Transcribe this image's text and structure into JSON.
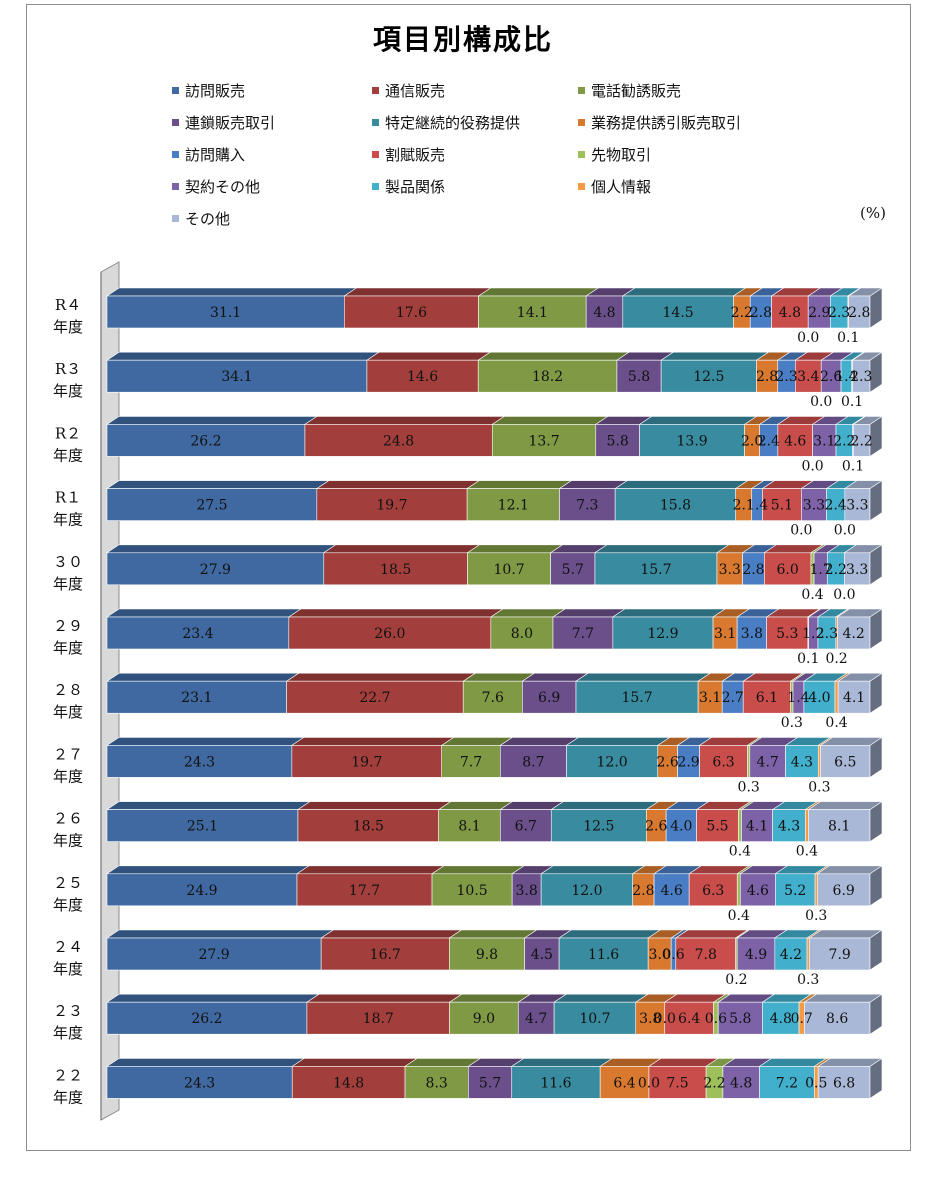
{
  "chart_data": {
    "type": "bar",
    "stacked": true,
    "orientation": "horizontal",
    "title": "項目別構成比",
    "unit": "(%)",
    "legend_position": "top",
    "categories": [
      [
        "R４",
        "年度"
      ],
      [
        "R３",
        "年度"
      ],
      [
        "R２",
        "年度"
      ],
      [
        "R１",
        "年度"
      ],
      [
        "３０",
        "年度"
      ],
      [
        "２９",
        "年度"
      ],
      [
        "２８",
        "年度"
      ],
      [
        "２７",
        "年度"
      ],
      [
        "２６",
        "年度"
      ],
      [
        "２５",
        "年度"
      ],
      [
        "２４",
        "年度"
      ],
      [
        "２３",
        "年度"
      ],
      [
        "２２",
        "年度"
      ]
    ],
    "series": [
      {
        "name": "訪問販売",
        "color": "#3f69a0",
        "values": [
          31.1,
          34.1,
          26.2,
          27.5,
          27.9,
          23.4,
          23.1,
          24.3,
          25.1,
          24.9,
          27.9,
          26.2,
          24.3
        ]
      },
      {
        "name": "通信販売",
        "color": "#a23f3c",
        "values": [
          17.6,
          14.6,
          24.8,
          19.7,
          18.5,
          26.0,
          22.7,
          19.7,
          18.5,
          17.7,
          16.7,
          18.7,
          14.8
        ]
      },
      {
        "name": "電話勧誘販売",
        "color": "#7f9944",
        "values": [
          14.1,
          18.2,
          13.7,
          12.1,
          10.7,
          8.0,
          7.6,
          7.7,
          8.1,
          10.5,
          9.8,
          9.0,
          8.3
        ]
      },
      {
        "name": "連鎖販売取引",
        "color": "#6a4f8a",
        "values": [
          4.8,
          5.8,
          5.8,
          7.3,
          5.7,
          7.7,
          6.9,
          8.7,
          6.7,
          3.8,
          4.5,
          4.7,
          5.7
        ]
      },
      {
        "name": "特定継続的役務提供",
        "color": "#398b9f",
        "values": [
          14.5,
          12.5,
          13.9,
          15.8,
          15.7,
          12.9,
          15.7,
          12.0,
          12.5,
          12.0,
          11.6,
          10.7,
          11.6
        ]
      },
      {
        "name": "業務提供誘引販売取引",
        "color": "#d8792f",
        "values": [
          2.2,
          2.8,
          2.0,
          2.1,
          3.3,
          3.1,
          3.1,
          2.6,
          2.6,
          2.8,
          3.0,
          3.8,
          6.4
        ]
      },
      {
        "name": "訪問購入",
        "color": "#4a7ec4",
        "values": [
          2.8,
          2.3,
          2.4,
          1.4,
          2.8,
          3.8,
          2.7,
          2.9,
          4.0,
          4.6,
          0.6,
          0.0,
          0.0
        ]
      },
      {
        "name": "割賦販売",
        "color": "#c94d4a",
        "values": [
          4.8,
          3.4,
          4.6,
          5.1,
          6.0,
          5.3,
          6.1,
          6.3,
          5.5,
          6.3,
          7.8,
          6.4,
          7.5
        ]
      },
      {
        "name": "先物取引",
        "color": "#9dc05a",
        "values": [
          0.0,
          0.0,
          0.0,
          0.0,
          0.4,
          0.1,
          0.3,
          0.3,
          0.4,
          0.4,
          0.2,
          0.6,
          2.2
        ]
      },
      {
        "name": "契約その他",
        "color": "#7e62a8",
        "values": [
          2.9,
          2.6,
          3.1,
          3.3,
          1.7,
          1.2,
          1.4,
          4.7,
          4.1,
          4.6,
          4.9,
          5.8,
          4.8
        ]
      },
      {
        "name": "製品関係",
        "color": "#42b0cc",
        "values": [
          2.3,
          1.4,
          2.2,
          2.4,
          2.2,
          2.3,
          4.0,
          4.3,
          4.3,
          5.2,
          4.2,
          4.8,
          7.2
        ]
      },
      {
        "name": "個人情報",
        "color": "#f59a45",
        "values": [
          0.1,
          0.1,
          0.1,
          0.0,
          0.0,
          0.2,
          0.4,
          0.3,
          0.4,
          0.3,
          0.3,
          0.7,
          0.5
        ]
      },
      {
        "name": "その他",
        "color": "#a9b8d6",
        "values": [
          2.8,
          2.3,
          2.2,
          3.3,
          3.3,
          4.2,
          4.1,
          6.5,
          8.1,
          6.9,
          7.9,
          8.6,
          6.8
        ]
      }
    ]
  }
}
